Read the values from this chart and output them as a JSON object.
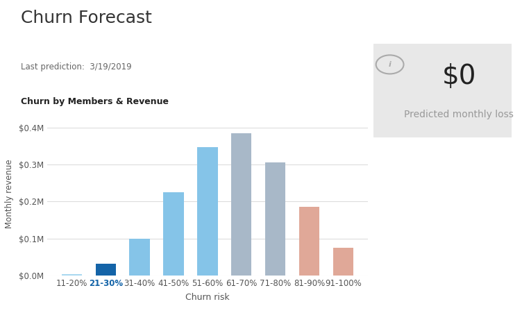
{
  "title": "Churn Forecast",
  "subtitle": "Last prediction:  3/19/2019",
  "chart_subtitle": "Churn by Members & Revenue",
  "categories": [
    "11-20%",
    "21-30%",
    "31-40%",
    "41-50%",
    "51-60%",
    "61-70%",
    "71-80%",
    "81-90%",
    "91-100%"
  ],
  "values": [
    0.003,
    0.032,
    0.1,
    0.225,
    0.347,
    0.385,
    0.305,
    0.185,
    0.075
  ],
  "bar_colors": [
    "#a8d8f0",
    "#1464a8",
    "#85c4e8",
    "#85c4e8",
    "#85c4e8",
    "#a8b8c8",
    "#a8b8c8",
    "#e0a898",
    "#e0a898"
  ],
  "xlabel": "Churn risk",
  "ylabel": "Monthly revenue",
  "ylim": [
    0,
    0.44
  ],
  "yticks": [
    0.0,
    0.1,
    0.2,
    0.3,
    0.4
  ],
  "ytick_labels": [
    "$0.0M",
    "$0.1M",
    "$0.2M",
    "$0.3M",
    "$0.4M"
  ],
  "chart_bg": "#ffffff",
  "fig_bg": "#ffffff",
  "tooltip_value": "$0",
  "tooltip_label": "Predicted monthly loss",
  "tooltip_bg": "#e8e8e8"
}
